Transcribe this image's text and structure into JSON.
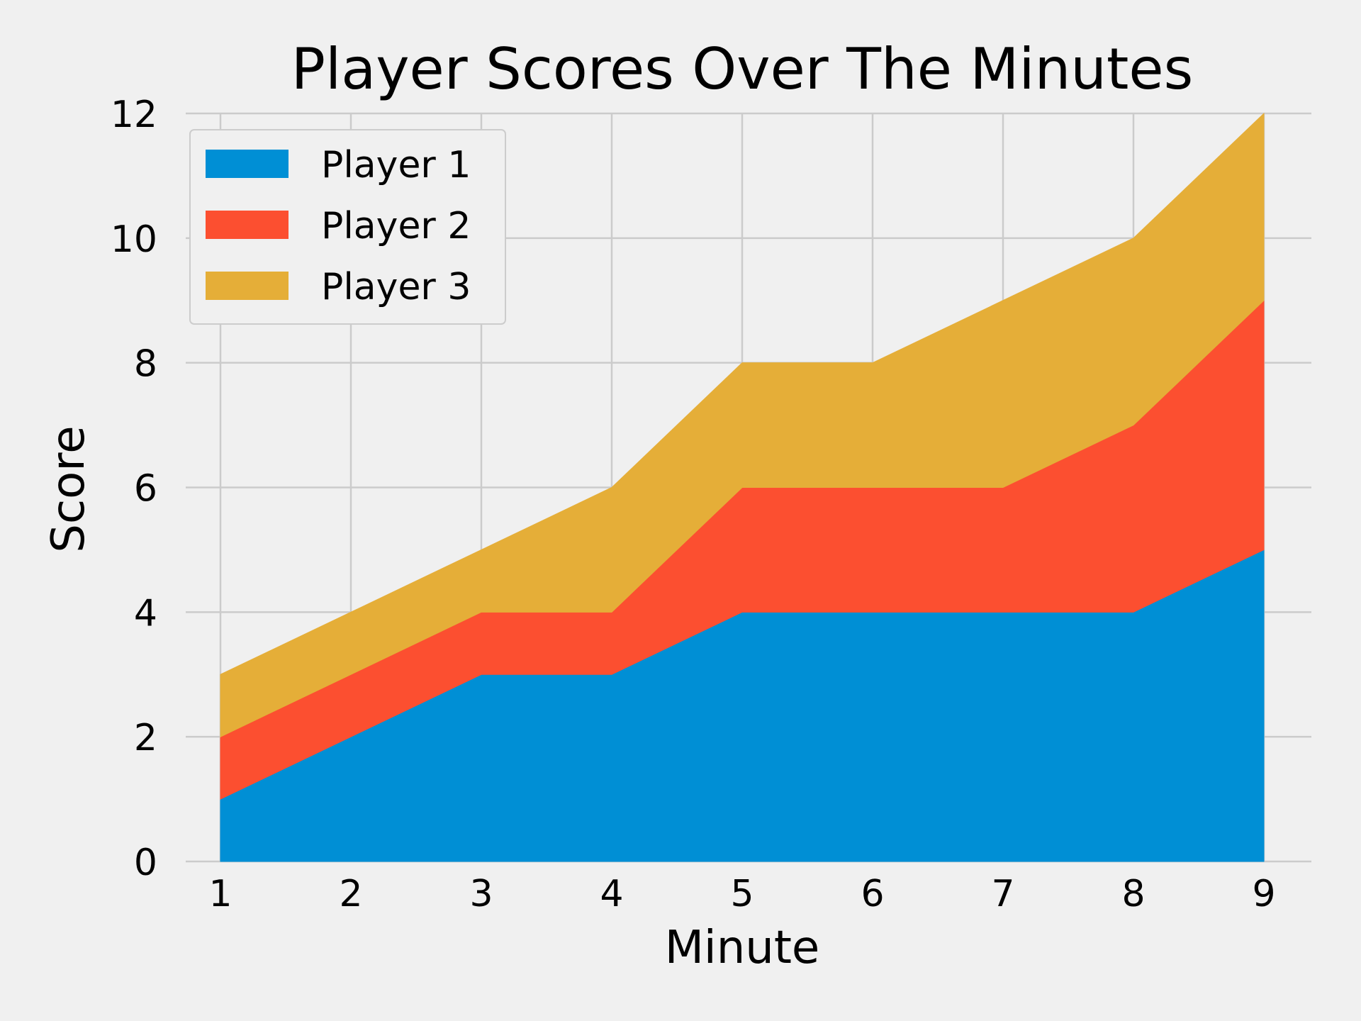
{
  "chart_data": {
    "type": "area",
    "stacked": true,
    "title": "Player Scores Over The Minutes",
    "xlabel": "Minute",
    "ylabel": "Score",
    "x": [
      1,
      2,
      3,
      4,
      5,
      6,
      7,
      8,
      9
    ],
    "xlim": [
      1,
      9
    ],
    "ylim": [
      0,
      12
    ],
    "xticks": [
      "1",
      "2",
      "3",
      "4",
      "5",
      "6",
      "7",
      "8",
      "9"
    ],
    "yticks": [
      "0",
      "2",
      "4",
      "6",
      "8",
      "10",
      "12"
    ],
    "grid": true,
    "legend_position": "top-left",
    "series": [
      {
        "name": "Player 1",
        "values": [
          1,
          2,
          3,
          3,
          4,
          4,
          4,
          4,
          5
        ],
        "color": "#008fd5"
      },
      {
        "name": "Player 2",
        "values": [
          1,
          1,
          1,
          1,
          2,
          2,
          2,
          3,
          4
        ],
        "color": "#fc4f30"
      },
      {
        "name": "Player 3",
        "values": [
          1,
          1,
          1,
          2,
          2,
          2,
          3,
          3,
          3
        ],
        "color": "#e5ae38"
      }
    ]
  }
}
